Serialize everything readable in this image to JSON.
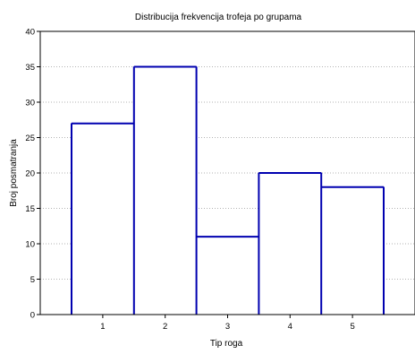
{
  "chart_data": {
    "type": "bar",
    "title": "Distribucija frekvencija trofeja po grupama",
    "xlabel": "Tip roga",
    "ylabel": "Broj posmatranja",
    "categories": [
      "1",
      "2",
      "3",
      "4",
      "5"
    ],
    "values": [
      27,
      35,
      11,
      20,
      18
    ],
    "ylim": [
      0,
      40
    ],
    "yticks": [
      "0",
      "5",
      "10",
      "15",
      "20",
      "25",
      "30",
      "35",
      "40"
    ],
    "grid": true,
    "grid_style": "dotted-horizontal",
    "colors": {
      "bar_outline": "#0000b0",
      "bar_fill": "#ffffff",
      "frame": "#000000",
      "grid": "#9a9a9a"
    }
  }
}
